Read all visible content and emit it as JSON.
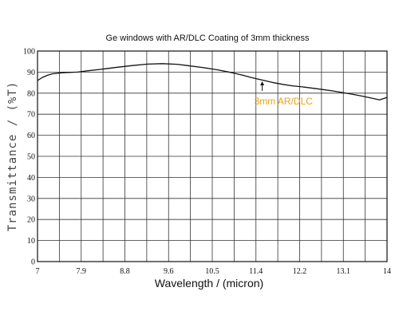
{
  "chart_data": {
    "type": "line",
    "title": "Ge windows with AR/DLC Coating of 3mm thickness",
    "xlabel": "Wavelength / (micron)",
    "ylabel": "Transmittance / (%T)",
    "xlim": [
      7,
      14
    ],
    "ylim": [
      0,
      100
    ],
    "grid": true,
    "x_ticks": [
      "7",
      "7.9",
      "8.8",
      "9.6",
      "10.5",
      "11.4",
      "12.2",
      "13.1",
      "14"
    ],
    "y_ticks": [
      "0",
      "10",
      "20",
      "30",
      "40",
      "50",
      "60",
      "70",
      "80",
      "90",
      "100"
    ],
    "annotation": {
      "text": "3mm AR/DLC",
      "color": "#e8a317",
      "arrow_at": [
        11.5,
        86
      ]
    },
    "series": [
      {
        "name": "3mm AR/DLC",
        "color": "#111111",
        "x": [
          7.0,
          7.1,
          7.2,
          7.3,
          7.5,
          7.8,
          8.0,
          8.3,
          8.6,
          8.9,
          9.2,
          9.5,
          9.8,
          10.0,
          10.3,
          10.6,
          10.9,
          11.1,
          11.3,
          11.5,
          11.7,
          11.9,
          12.1,
          12.3,
          12.6,
          12.9,
          13.1,
          13.3,
          13.5,
          13.7,
          13.85,
          14.0
        ],
        "y": [
          86.0,
          87.5,
          88.5,
          89.2,
          89.7,
          90.0,
          90.6,
          91.4,
          92.3,
          93.1,
          93.8,
          94.0,
          93.7,
          93.1,
          92.2,
          91.1,
          89.7,
          88.6,
          87.3,
          86.2,
          85.1,
          84.2,
          83.5,
          83.0,
          82.1,
          81.1,
          80.3,
          79.5,
          78.6,
          77.6,
          76.8,
          78.0
        ]
      }
    ]
  }
}
